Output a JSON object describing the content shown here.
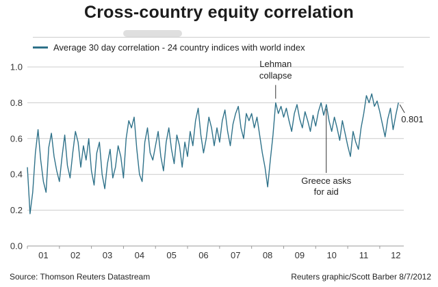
{
  "title": "Cross-country equity correlation",
  "legend": {
    "label": "Average 30 day correlation - 24 country indices with world index"
  },
  "footer": {
    "source": "Source: Thomson Reuters Datastream",
    "credit": "Reuters graphic/Scott Barber 8/7/2012"
  },
  "colors": {
    "line": "#2e7189",
    "grid": "#cccccc",
    "axis": "#999999",
    "text": "#333333",
    "annotation": "#333333"
  },
  "chart_data": {
    "type": "line",
    "title": "Cross-country equity correlation",
    "xlabel": "",
    "ylabel": "",
    "ylim": [
      0,
      1
    ],
    "yticks": [
      0,
      0.2,
      0.4,
      0.6,
      0.8,
      1.0
    ],
    "x_domain": [
      2001,
      2012.75
    ],
    "xtick_labels": [
      "01",
      "02",
      "03",
      "04",
      "05",
      "06",
      "07",
      "08",
      "09",
      "10",
      "11",
      "12"
    ],
    "grid": true,
    "legend_position": "top-left",
    "series": [
      {
        "name": "Average 30 day correlation - 24 country indices with world index",
        "color": "#2e7189",
        "x_start": 2001,
        "points_per_year": 12,
        "values": [
          0.44,
          0.18,
          0.3,
          0.52,
          0.65,
          0.48,
          0.36,
          0.3,
          0.55,
          0.63,
          0.5,
          0.42,
          0.36,
          0.5,
          0.62,
          0.45,
          0.38,
          0.52,
          0.64,
          0.58,
          0.44,
          0.56,
          0.48,
          0.6,
          0.42,
          0.34,
          0.52,
          0.58,
          0.4,
          0.32,
          0.46,
          0.54,
          0.38,
          0.44,
          0.56,
          0.5,
          0.38,
          0.6,
          0.7,
          0.66,
          0.72,
          0.54,
          0.4,
          0.36,
          0.58,
          0.66,
          0.52,
          0.48,
          0.56,
          0.64,
          0.5,
          0.42,
          0.58,
          0.66,
          0.54,
          0.46,
          0.62,
          0.56,
          0.44,
          0.58,
          0.5,
          0.64,
          0.56,
          0.7,
          0.77,
          0.62,
          0.52,
          0.6,
          0.72,
          0.66,
          0.56,
          0.66,
          0.58,
          0.7,
          0.76,
          0.64,
          0.56,
          0.68,
          0.74,
          0.78,
          0.66,
          0.6,
          0.74,
          0.7,
          0.74,
          0.66,
          0.72,
          0.62,
          0.52,
          0.44,
          0.33,
          0.48,
          0.62,
          0.8,
          0.74,
          0.78,
          0.72,
          0.77,
          0.7,
          0.64,
          0.74,
          0.79,
          0.71,
          0.66,
          0.75,
          0.7,
          0.64,
          0.73,
          0.67,
          0.75,
          0.8,
          0.73,
          0.79,
          0.7,
          0.64,
          0.72,
          0.66,
          0.59,
          0.7,
          0.63,
          0.56,
          0.5,
          0.64,
          0.58,
          0.54,
          0.66,
          0.74,
          0.84,
          0.8,
          0.85,
          0.78,
          0.81,
          0.75,
          0.68,
          0.61,
          0.71,
          0.77,
          0.65,
          0.73,
          0.801
        ]
      }
    ],
    "annotations": [
      {
        "id": "lehman",
        "text": "Lehman collapse",
        "t": 2008.75,
        "v": 0.8,
        "label_pos": "above",
        "pointer": [
          -26,
          -6
        ]
      },
      {
        "id": "greece",
        "text": "Greece asks for aid",
        "t": 2010.33,
        "v": 0.79,
        "label_pos": "below",
        "pointer": [
          6,
          100
        ]
      }
    ],
    "end_label": {
      "text": "0.801",
      "value": 0.801
    }
  }
}
